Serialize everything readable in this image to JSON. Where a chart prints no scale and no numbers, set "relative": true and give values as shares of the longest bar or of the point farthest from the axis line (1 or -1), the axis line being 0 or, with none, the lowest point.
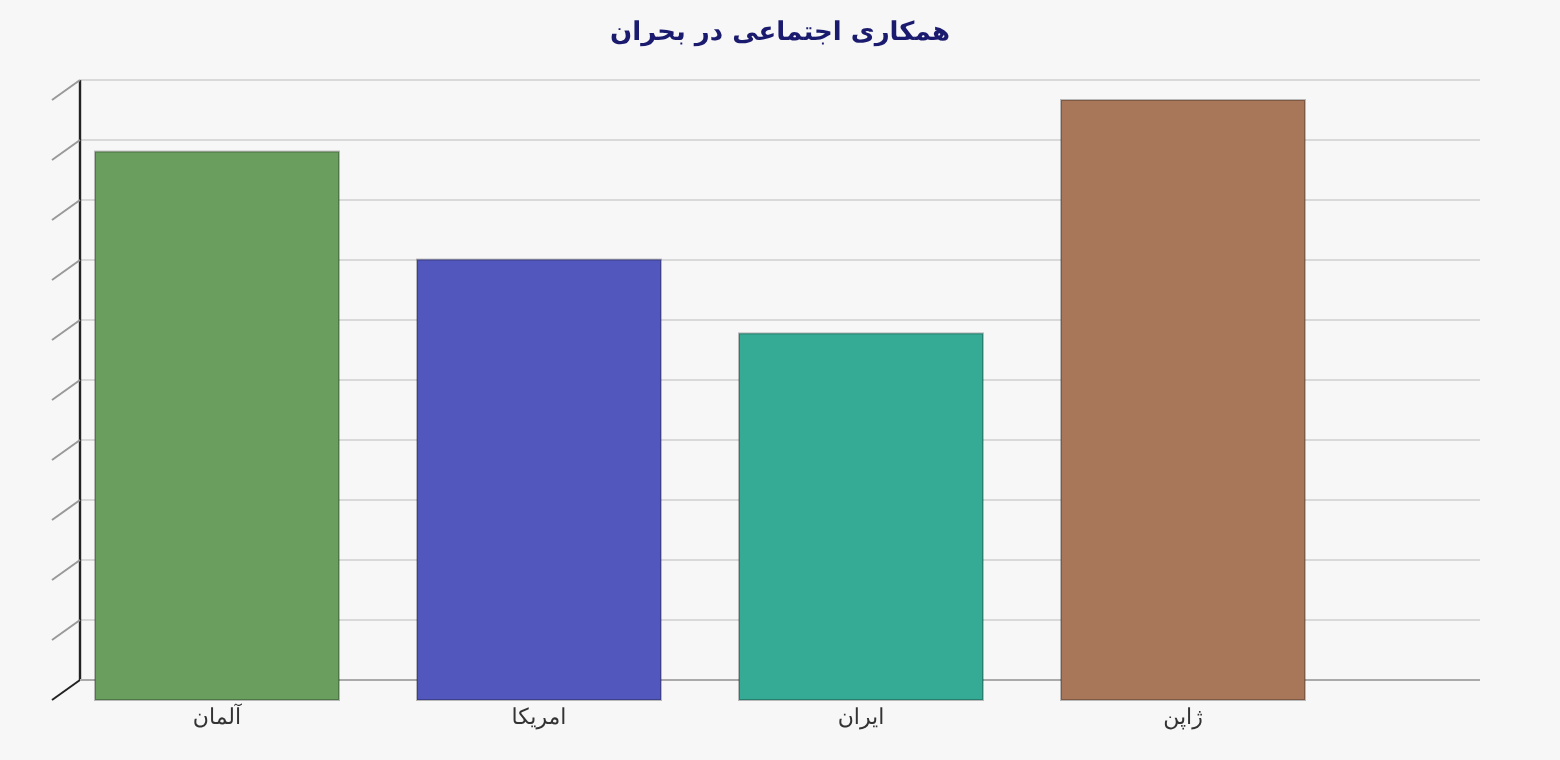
{
  "chart_data": {
    "type": "bar",
    "title": "همکاری اجتماعی در بحران",
    "categories": [
      "آلمان",
      "امریکا",
      "ایران",
      "ژاپن"
    ],
    "values": [
      0.914,
      0.734,
      0.611,
      1
    ],
    "colors": [
      "#6a9e5e",
      "#5257bd",
      "#35aa95",
      "#a8775a"
    ],
    "relative": true,
    "grid": "y"
  }
}
